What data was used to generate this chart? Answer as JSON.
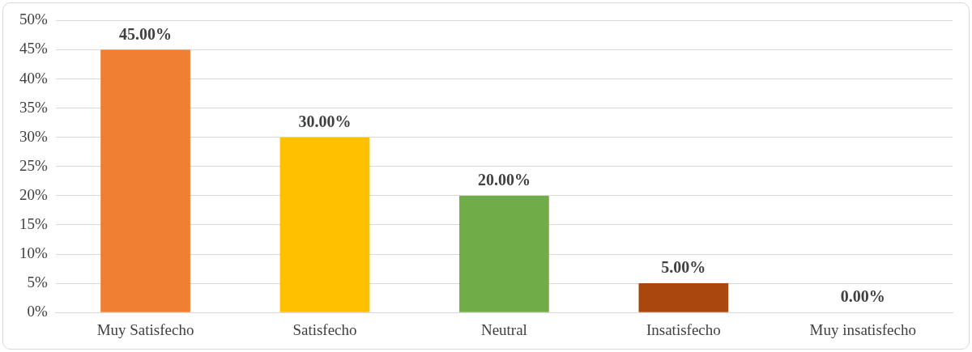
{
  "chart_data": {
    "type": "bar",
    "categories": [
      "Muy Satisfecho",
      "Satisfecho",
      "Neutral",
      "Insatisfecho",
      "Muy insatisfecho"
    ],
    "values": [
      45,
      30,
      20,
      5,
      0
    ],
    "colors": [
      "#f07f34",
      "#ffc000",
      "#70ad47",
      "#a9470f",
      "#7f7f7f"
    ],
    "value_labels": [
      "45.00%",
      "30.00%",
      "20.00%",
      "5.00%",
      "0.00%"
    ],
    "ylim": [
      0,
      50
    ],
    "yticks": [
      {
        "value": 0,
        "label": "0%"
      },
      {
        "value": 5,
        "label": "5%"
      },
      {
        "value": 10,
        "label": "10%"
      },
      {
        "value": 15,
        "label": "15%"
      },
      {
        "value": 20,
        "label": "20%"
      },
      {
        "value": 25,
        "label": "25%"
      },
      {
        "value": 30,
        "label": "30%"
      },
      {
        "value": 35,
        "label": "35%"
      },
      {
        "value": 40,
        "label": "40%"
      },
      {
        "value": 45,
        "label": "45%"
      },
      {
        "value": 50,
        "label": "50%"
      }
    ],
    "grid": "y",
    "legend": false
  }
}
